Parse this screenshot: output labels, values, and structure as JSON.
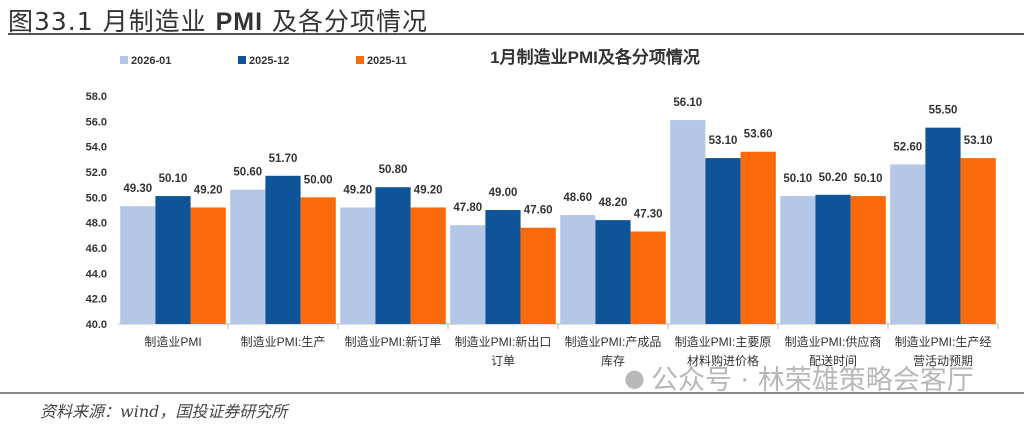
{
  "figure": {
    "title_prefix": "图33.1",
    "title_main": "月制造业",
    "title_bold": "PMI",
    "title_rest": "及各分项情况"
  },
  "source": "资料来源：wind，国投证券研究所",
  "watermark": {
    "icon": "wechat-icon",
    "text": "公众号 · 林荣雄策略会客厅"
  },
  "chart_data": {
    "type": "bar",
    "title": "1月制造业PMI及各分项情况",
    "categories": [
      [
        "制造业PMI"
      ],
      [
        "制造业PMI:生产"
      ],
      [
        "制造业PMI:新订单"
      ],
      [
        "制造业PMI:新出口",
        "订单"
      ],
      [
        "制造业PMI:产成品",
        "库存"
      ],
      [
        "制造业PMI:主要原",
        "材料购进价格"
      ],
      [
        "制造业PMI:供应商",
        "配送时间"
      ],
      [
        "制造业PMI:生产经",
        "营活动预期"
      ]
    ],
    "series": [
      {
        "name": "2026-01",
        "color": "#b4c7e7",
        "values": [
          49.3,
          50.6,
          49.2,
          47.8,
          48.6,
          56.1,
          50.1,
          52.6
        ]
      },
      {
        "name": "2025-12",
        "color": "#0f5499",
        "values": [
          50.1,
          51.7,
          50.8,
          49.0,
          48.2,
          53.1,
          50.2,
          55.5
        ]
      },
      {
        "name": "2025-11",
        "color": "#fa6a0a",
        "values": [
          49.2,
          50.0,
          49.2,
          47.6,
          47.3,
          53.6,
          50.1,
          53.1
        ]
      }
    ],
    "ylim": [
      40,
      58
    ],
    "yticks": [
      "40.0",
      "42.0",
      "44.0",
      "46.0",
      "48.0",
      "50.0",
      "52.0",
      "54.0",
      "56.0",
      "58.0"
    ],
    "grid": false,
    "legend": "top-left"
  }
}
